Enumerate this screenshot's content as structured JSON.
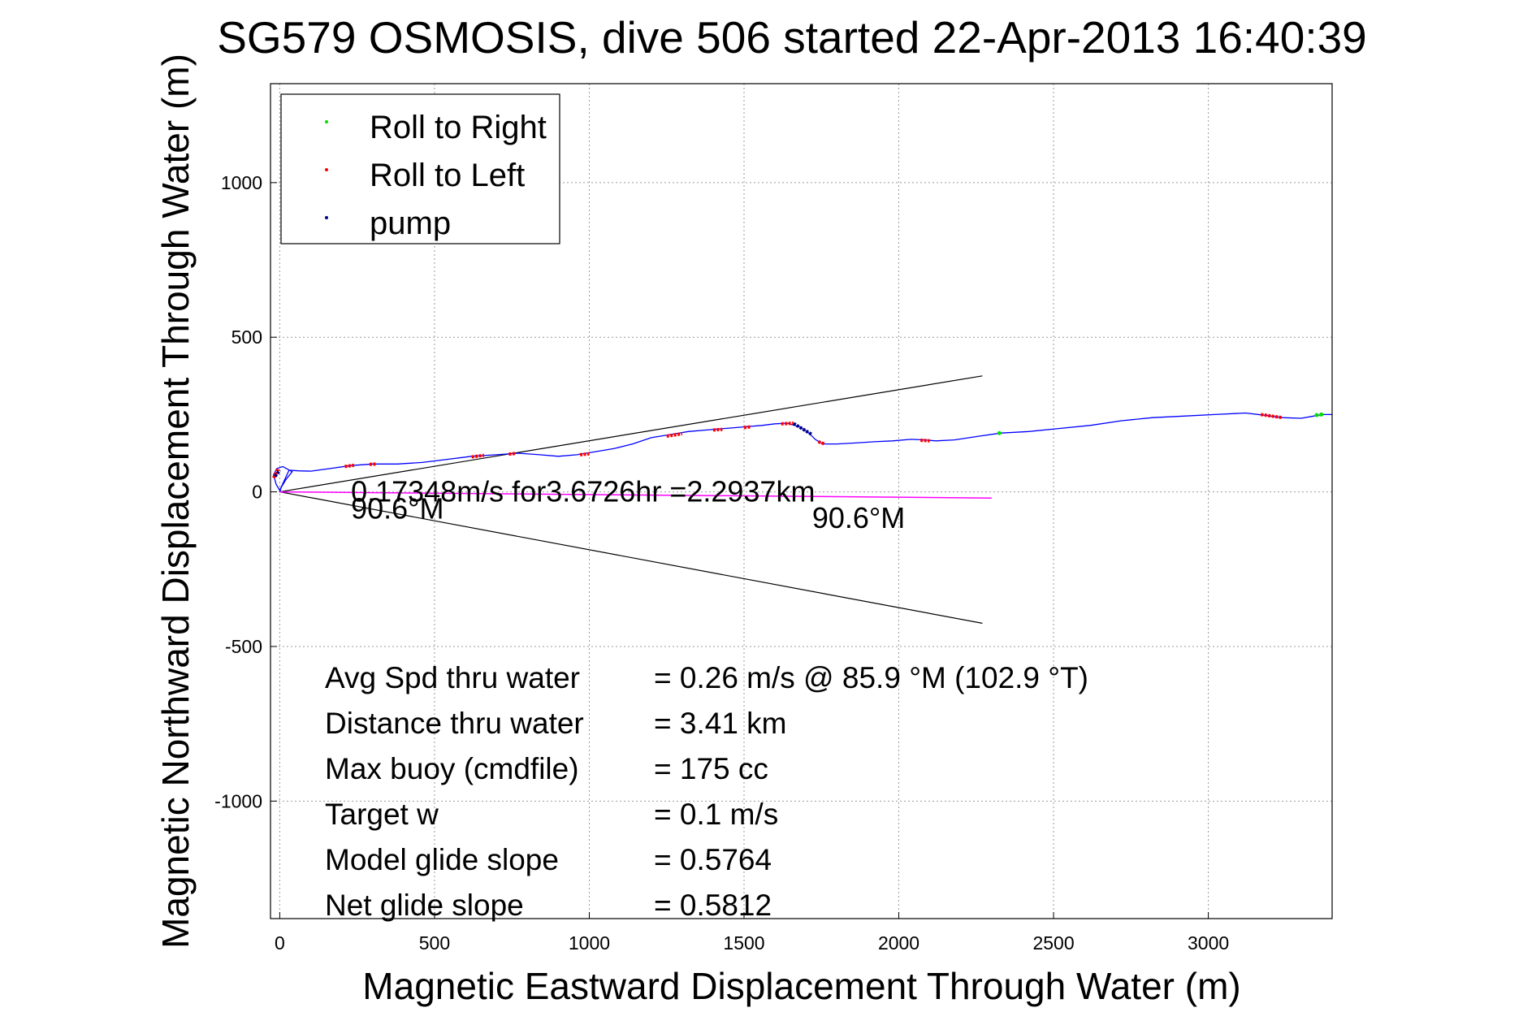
{
  "chart_data": {
    "type": "line",
    "title": "SG579 OSMOSIS, dive 506 started 22-Apr-2013 16:40:39",
    "xlabel": "Magnetic Eastward Displacement Through Water (m)",
    "ylabel": "Magnetic Northward Displacement Through Water (m)",
    "xlim": [
      -30,
      3400
    ],
    "ylim": [
      -1380,
      1320
    ],
    "xticks": [
      0,
      500,
      1000,
      1500,
      2000,
      2500,
      3000
    ],
    "yticks": [
      -1000,
      -500,
      0,
      500,
      1000
    ],
    "grid": true,
    "legend_position": "top-left",
    "legend": [
      {
        "label": "Roll to Right",
        "color": "#00dd00"
      },
      {
        "label": "Roll to Left",
        "color": "#ff0000"
      },
      {
        "label": "pump",
        "color": "#000080"
      }
    ],
    "track": {
      "color": "#0000ff",
      "x": [
        0,
        5,
        20,
        40,
        10,
        -10,
        -20,
        -12,
        0,
        30,
        60,
        100,
        160,
        230,
        300,
        380,
        460,
        540,
        620,
        700,
        770,
        840,
        900,
        960,
        1020,
        1080,
        1140,
        1200,
        1260,
        1320,
        1380,
        1440,
        1500,
        1560,
        1600,
        1640,
        1680,
        1710,
        1730,
        1745,
        1760,
        1800,
        1860,
        1920,
        1980,
        2040,
        2080,
        2120,
        2180,
        2260,
        2330,
        2420,
        2520,
        2620,
        2720,
        2820,
        2920,
        3020,
        3120,
        3180,
        3240,
        3300,
        3340,
        3370,
        3400
      ],
      "y": [
        0,
        15,
        40,
        65,
        82,
        75,
        55,
        25,
        5,
        70,
        68,
        67,
        75,
        85,
        90,
        90,
        95,
        105,
        115,
        120,
        125,
        120,
        115,
        120,
        130,
        140,
        155,
        175,
        185,
        195,
        200,
        205,
        210,
        215,
        220,
        222,
        210,
        190,
        170,
        160,
        155,
        155,
        158,
        162,
        165,
        170,
        168,
        165,
        168,
        180,
        190,
        195,
        205,
        215,
        230,
        240,
        245,
        250,
        255,
        248,
        240,
        238,
        245,
        250,
        250
      ]
    },
    "roll_right_points": [
      [
        2325,
        190
      ],
      [
        3350,
        248
      ],
      [
        3365,
        250
      ]
    ],
    "roll_left_segments": [
      [
        [
          -20,
          45
        ],
        [
          -5,
          75
        ]
      ],
      [
        [
          210,
          82
        ],
        [
          240,
          86
        ]
      ],
      [
        [
          290,
          89
        ],
        [
          310,
          90
        ]
      ],
      [
        [
          620,
          113
        ],
        [
          660,
          118
        ]
      ],
      [
        [
          740,
          122
        ],
        [
          760,
          124
        ]
      ],
      [
        [
          970,
          120
        ],
        [
          1000,
          123
        ]
      ],
      [
        [
          1250,
          180
        ],
        [
          1300,
          188
        ]
      ],
      [
        [
          1400,
          200
        ],
        [
          1430,
          202
        ]
      ],
      [
        [
          1500,
          208
        ],
        [
          1520,
          210
        ]
      ],
      [
        [
          1620,
          220
        ],
        [
          1660,
          222
        ]
      ],
      [
        [
          1740,
          162
        ],
        [
          1760,
          155
        ]
      ],
      [
        [
          2070,
          167
        ],
        [
          2100,
          165
        ]
      ],
      [
        [
          3170,
          250
        ],
        [
          3240,
          240
        ]
      ]
    ],
    "pump_segments": [
      [
        [
          -15,
          50
        ],
        [
          0,
          70
        ]
      ],
      [
        [
          1660,
          221
        ],
        [
          1720,
          185
        ]
      ]
    ],
    "cone_lines": [
      {
        "from": [
          0,
          0
        ],
        "to": [
          2270,
          375
        ]
      },
      {
        "from": [
          0,
          0
        ],
        "to": [
          2270,
          -425
        ]
      }
    ],
    "current_vector": {
      "from": [
        0,
        0
      ],
      "to": [
        2300,
        -20
      ],
      "color": "#ff00ff"
    },
    "annotations": [
      {
        "text": "0.17348m/s for3.6726hr =2.2937km",
        "x": 230,
        "y": 0
      },
      {
        "text": "90.6°M",
        "x": 230,
        "y": -55
      },
      {
        "text": "90.6°M",
        "x": 1720,
        "y": -85
      }
    ],
    "stats": [
      {
        "label": "Avg Spd thru water",
        "value": "=  0.26 m/s @  85.9 °M (102.9 °T)"
      },
      {
        "label": "Distance thru water",
        "value": "=  3.41 km"
      },
      {
        "label": "Max buoy (cmdfile)",
        "value": "= 175 cc"
      },
      {
        "label": "Target w",
        "value": "= 0.1 m/s"
      },
      {
        "label": "Model glide slope",
        "value": "= 0.5764"
      },
      {
        "label": "Net glide slope",
        "value": "= 0.5812"
      }
    ]
  }
}
